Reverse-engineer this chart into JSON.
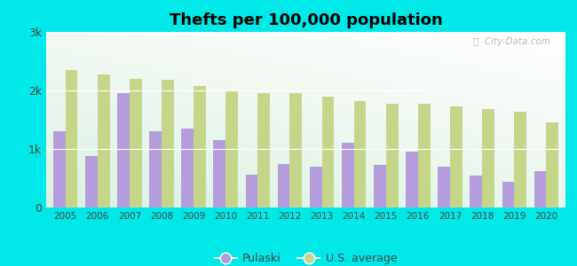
{
  "title": "Thefts per 100,000 population",
  "years": [
    2005,
    2006,
    2007,
    2008,
    2009,
    2010,
    2011,
    2012,
    2013,
    2014,
    2015,
    2016,
    2017,
    2018,
    2019,
    2020
  ],
  "pulaski": [
    1300,
    880,
    1960,
    1300,
    1350,
    1150,
    560,
    750,
    700,
    1100,
    730,
    960,
    700,
    540,
    440,
    620
  ],
  "us_average": [
    2350,
    2280,
    2200,
    2180,
    2080,
    1990,
    1960,
    1960,
    1900,
    1820,
    1780,
    1770,
    1720,
    1680,
    1640,
    1450
  ],
  "pulaski_color": "#b39ddb",
  "us_avg_color": "#c5d68a",
  "outer_background": "#00e8e8",
  "ylim": [
    0,
    3000
  ],
  "yticks": [
    0,
    1000,
    2000,
    3000
  ],
  "ytick_labels": [
    "0",
    "1k",
    "2k",
    "3k"
  ],
  "bar_width": 0.38,
  "legend_labels": [
    "Pulaski",
    "U.S. average"
  ],
  "watermark": "ⓘ  City-Data.com"
}
